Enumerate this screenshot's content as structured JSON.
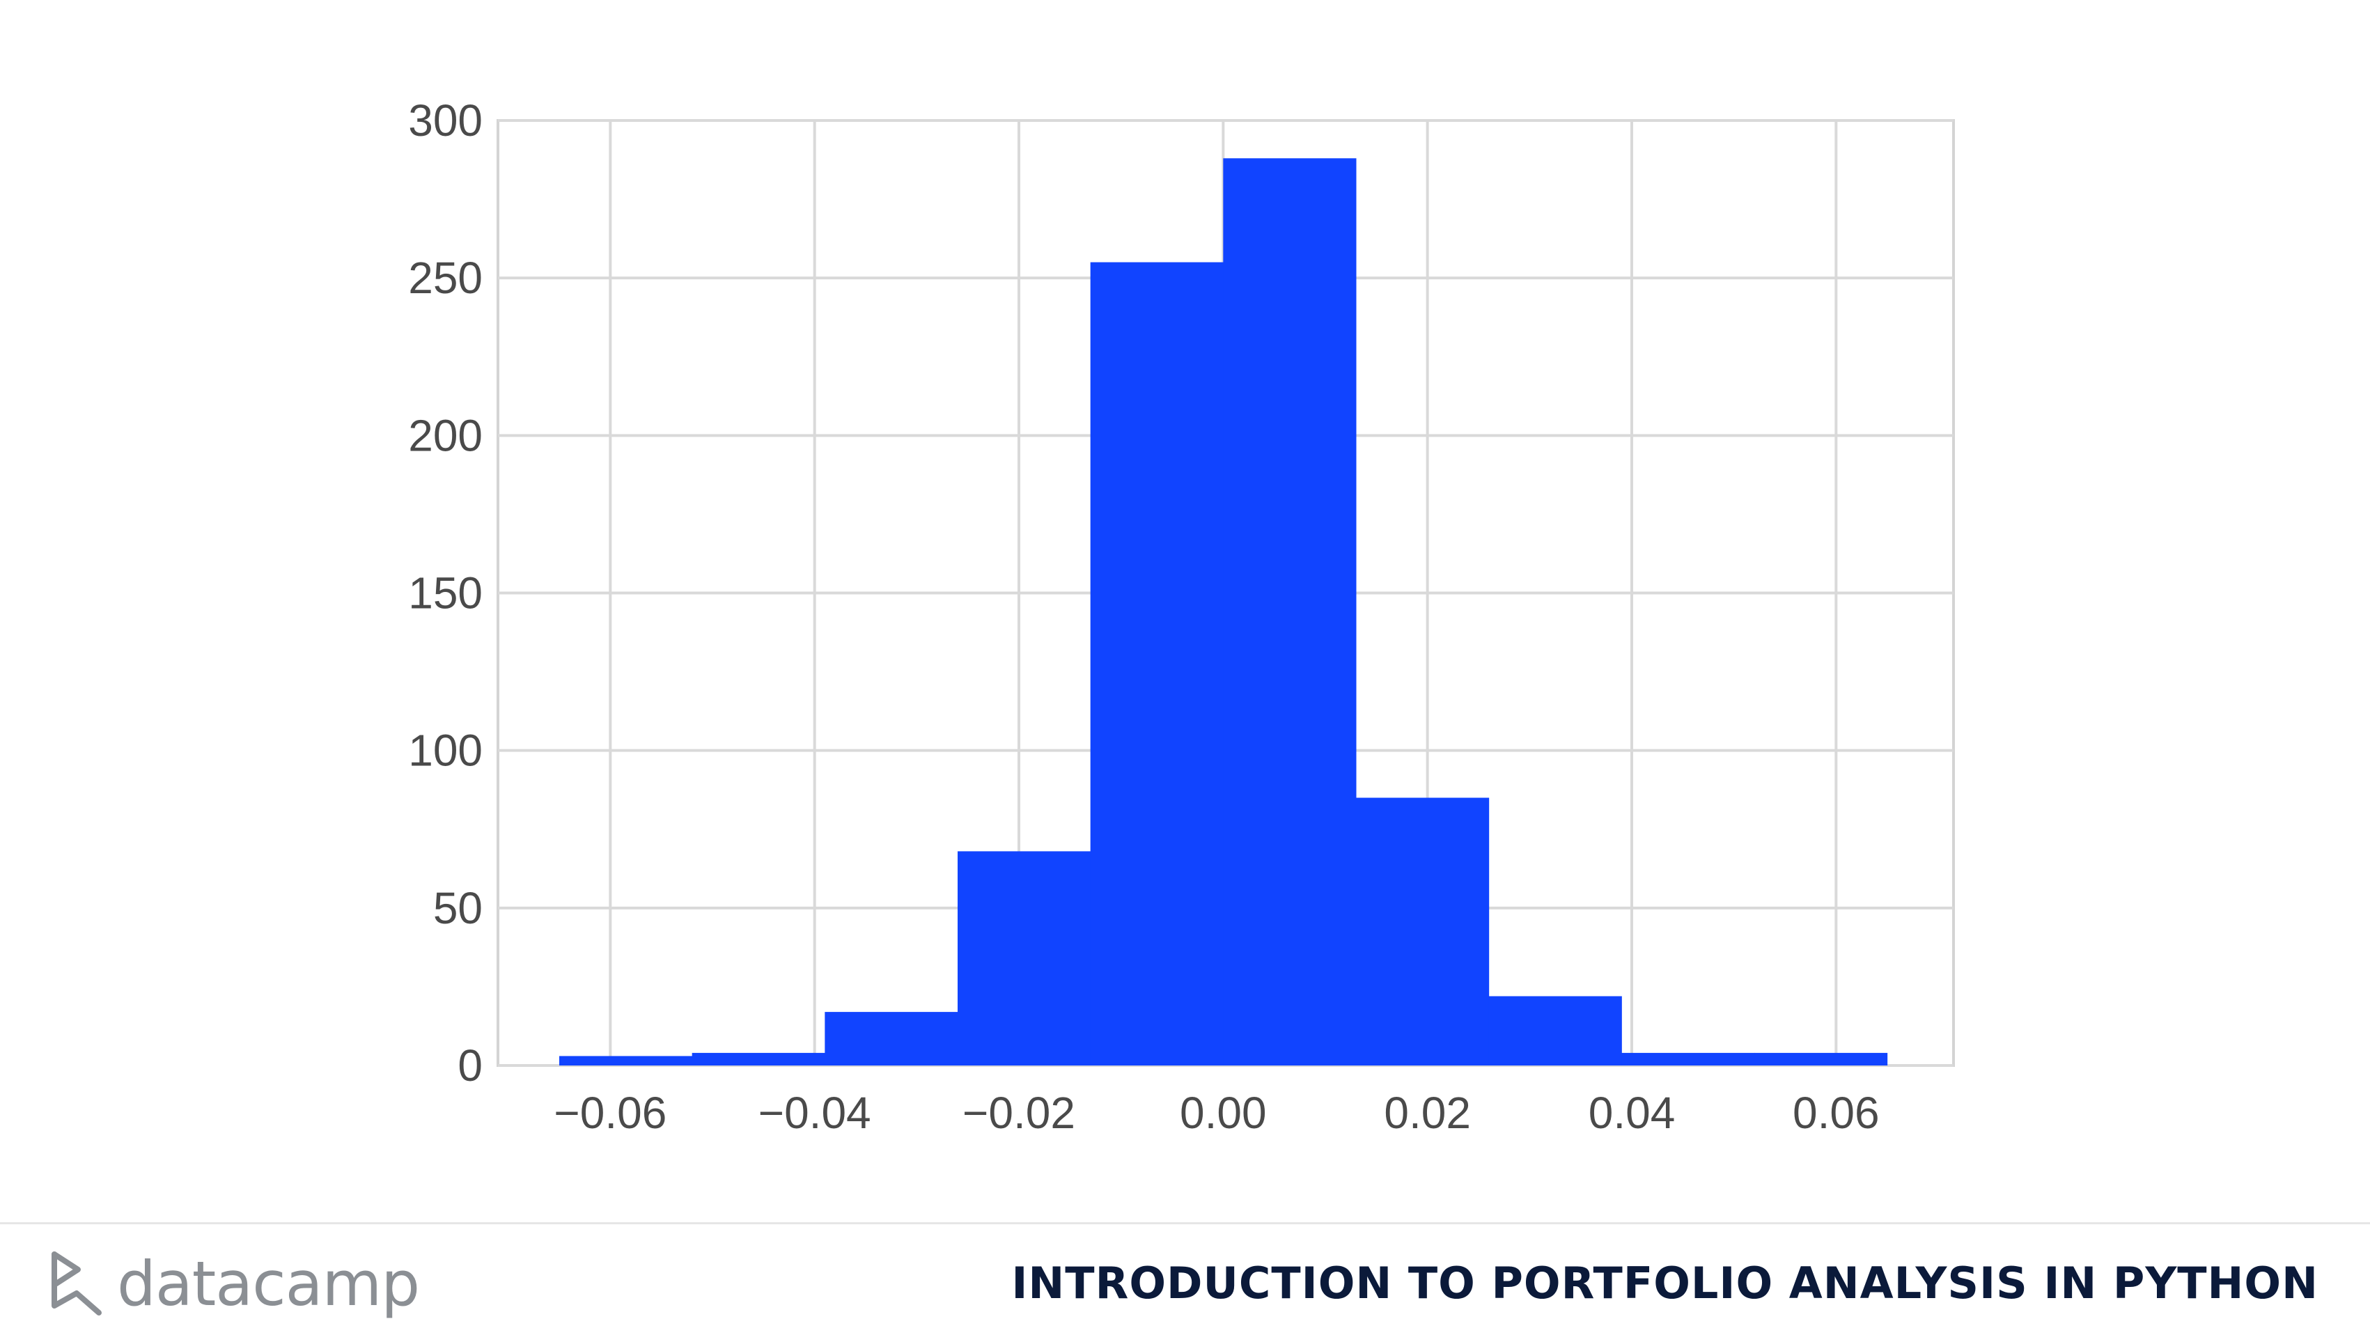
{
  "chart_data": {
    "type": "bar",
    "bin_edges": [
      -0.065,
      -0.052,
      -0.039,
      -0.026,
      -0.013,
      0.0,
      0.013,
      0.026,
      0.039,
      0.052,
      0.065
    ],
    "values": [
      3,
      4,
      17,
      68,
      255,
      288,
      85,
      22,
      4,
      4
    ],
    "xticks": [
      -0.06,
      -0.04,
      -0.02,
      0.0,
      0.02,
      0.04,
      0.06
    ],
    "xtick_labels": [
      "−0.06",
      "−0.04",
      "−0.02",
      "0.00",
      "0.02",
      "0.04",
      "0.06"
    ],
    "yticks": [
      0,
      50,
      100,
      150,
      200,
      250,
      300
    ],
    "ytick_labels": [
      "0",
      "50",
      "100",
      "150",
      "200",
      "250",
      "300"
    ],
    "xlim": [
      -0.071,
      0.0715
    ],
    "ylim": [
      0,
      300
    ],
    "grid": true,
    "bar_color": "#1144ff",
    "title": "",
    "xlabel": "",
    "ylabel": ""
  },
  "footer": {
    "logo_text": "datacamp",
    "course_title": "INTRODUCTION TO PORTFOLIO ANALYSIS IN PYTHON"
  },
  "colors": {
    "grid": "#d9d9d9",
    "logo": "#8b8f94",
    "course_title": "#0b1a3a"
  }
}
